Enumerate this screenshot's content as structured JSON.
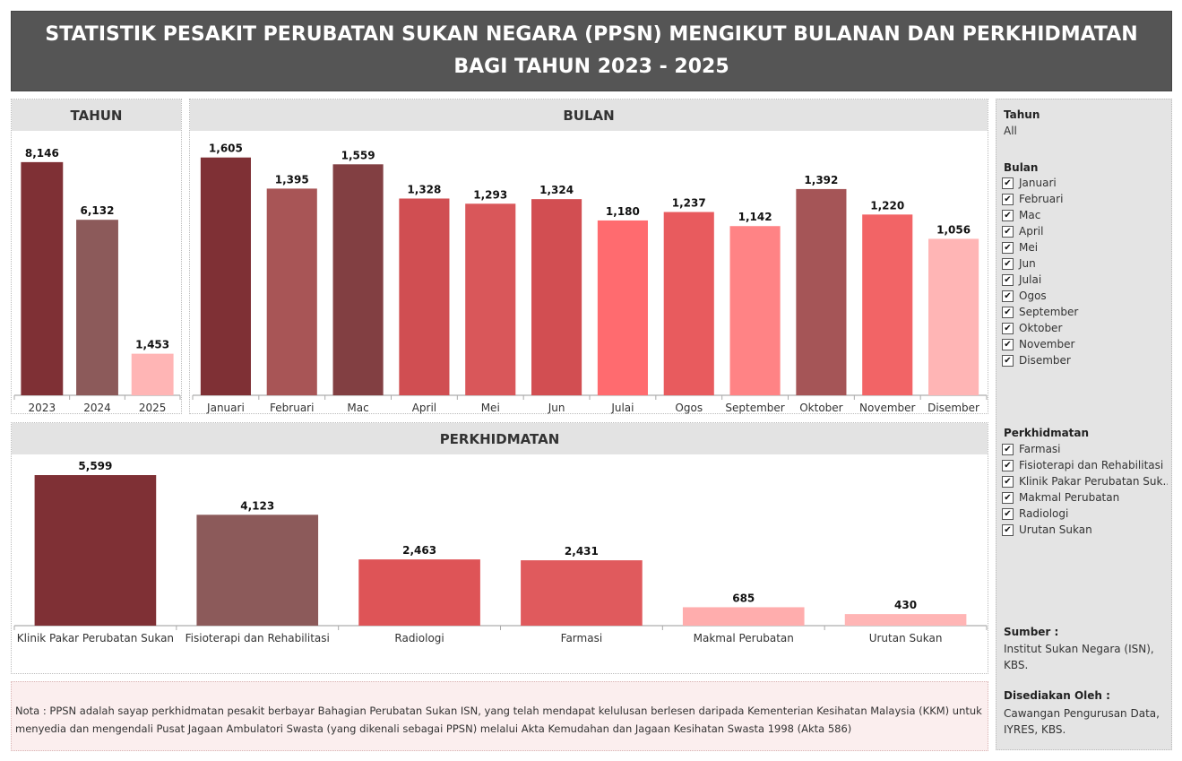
{
  "title": "STATISTIK PESAKIT PERUBATAN SUKAN NEGARA (PPSN) MENGIKUT BULANAN DAN PERKHIDMATAN BAGI TAHUN 2023 - 2025",
  "panels": {
    "tahun": "TAHUN",
    "bulan": "BULAN",
    "perkhidmatan": "PERKHIDMATAN"
  },
  "chart_data": [
    {
      "type": "bar",
      "title": "TAHUN",
      "categories": [
        "2023",
        "2024",
        "2025"
      ],
      "values": [
        8146,
        6132,
        1453
      ],
      "value_labels": [
        "8,146",
        "6,132",
        "1,453"
      ],
      "colors": [
        "#7f3035",
        "#8c5a5a",
        "#ffb5b5"
      ],
      "ylim": [
        0,
        8800
      ]
    },
    {
      "type": "bar",
      "title": "BULAN",
      "categories": [
        "Januari",
        "Februari",
        "Mac",
        "April",
        "Mei",
        "Jun",
        "Julai",
        "Ogos",
        "September",
        "Oktober",
        "November",
        "Disember"
      ],
      "values": [
        1605,
        1395,
        1559,
        1328,
        1293,
        1324,
        1180,
        1237,
        1142,
        1392,
        1220,
        1056
      ],
      "value_labels": [
        "1,605",
        "1,395",
        "1,559",
        "1,328",
        "1,293",
        "1,324",
        "1,180",
        "1,237",
        "1,142",
        "1,392",
        "1,220",
        "1,056"
      ],
      "colors": [
        "#7f3035",
        "#a85556",
        "#823f42",
        "#d04e52",
        "#d9575a",
        "#d24e52",
        "#ff6b6f",
        "#e85b5e",
        "#ff8385",
        "#a55557",
        "#f26466",
        "#ffb5b5"
      ],
      "ylim": [
        0,
        1700
      ]
    },
    {
      "type": "bar",
      "title": "PERKHIDMATAN",
      "categories": [
        "Klinik Pakar Perubatan Sukan",
        "Fisioterapi dan Rehabilitasi",
        "Radiologi",
        "Farmasi",
        "Makmal Perubatan",
        "Urutan Sukan"
      ],
      "values": [
        5599,
        4123,
        2463,
        2431,
        685,
        430
      ],
      "value_labels": [
        "5,599",
        "4,123",
        "2,463",
        "2,431",
        "685",
        "430"
      ],
      "colors": [
        "#7f3035",
        "#8c5a5a",
        "#de5457",
        "#e05a5d",
        "#ffadad",
        "#ffb5b5"
      ],
      "ylim": [
        0,
        6000
      ]
    }
  ],
  "filters": {
    "tahun": {
      "label": "Tahun",
      "value": "All"
    },
    "bulan": {
      "label": "Bulan",
      "items": [
        "Januari",
        "Februari",
        "Mac",
        "April",
        "Mei",
        "Jun",
        "Julai",
        "Ogos",
        "September",
        "Oktober",
        "November",
        "Disember"
      ]
    },
    "perkhidmatan": {
      "label": "Perkhidmatan",
      "items": [
        "Farmasi",
        "Fisioterapi dan Rehabilitasi",
        "Klinik Pakar Perubatan Suk..",
        "Makmal Perubatan",
        "Radiologi",
        "Urutan Sukan"
      ]
    },
    "check_mark": "✔"
  },
  "sumber": {
    "label": "Sumber :",
    "lines": [
      "Institut Sukan Negara (ISN),",
      "KBS."
    ]
  },
  "disediakan": {
    "label": "Disediakan Oleh :",
    "lines": [
      "Cawangan Pengurusan Data,",
      "IYRES, KBS."
    ]
  },
  "note": "Nota : PPSN adalah sayap perkhidmatan pesakit berbayar Bahagian Perubatan Sukan ISN, yang telah mendapat kelulusan berlesen daripada Kementerian Kesihatan Malaysia (KKM) untuk menyedia dan mengendali Pusat Jagaan Ambulatori Swasta (yang dikenali sebagai PPSN) melalui Akta Kemudahan dan Jagaan Kesihatan Swasta 1998 (Akta 586)"
}
